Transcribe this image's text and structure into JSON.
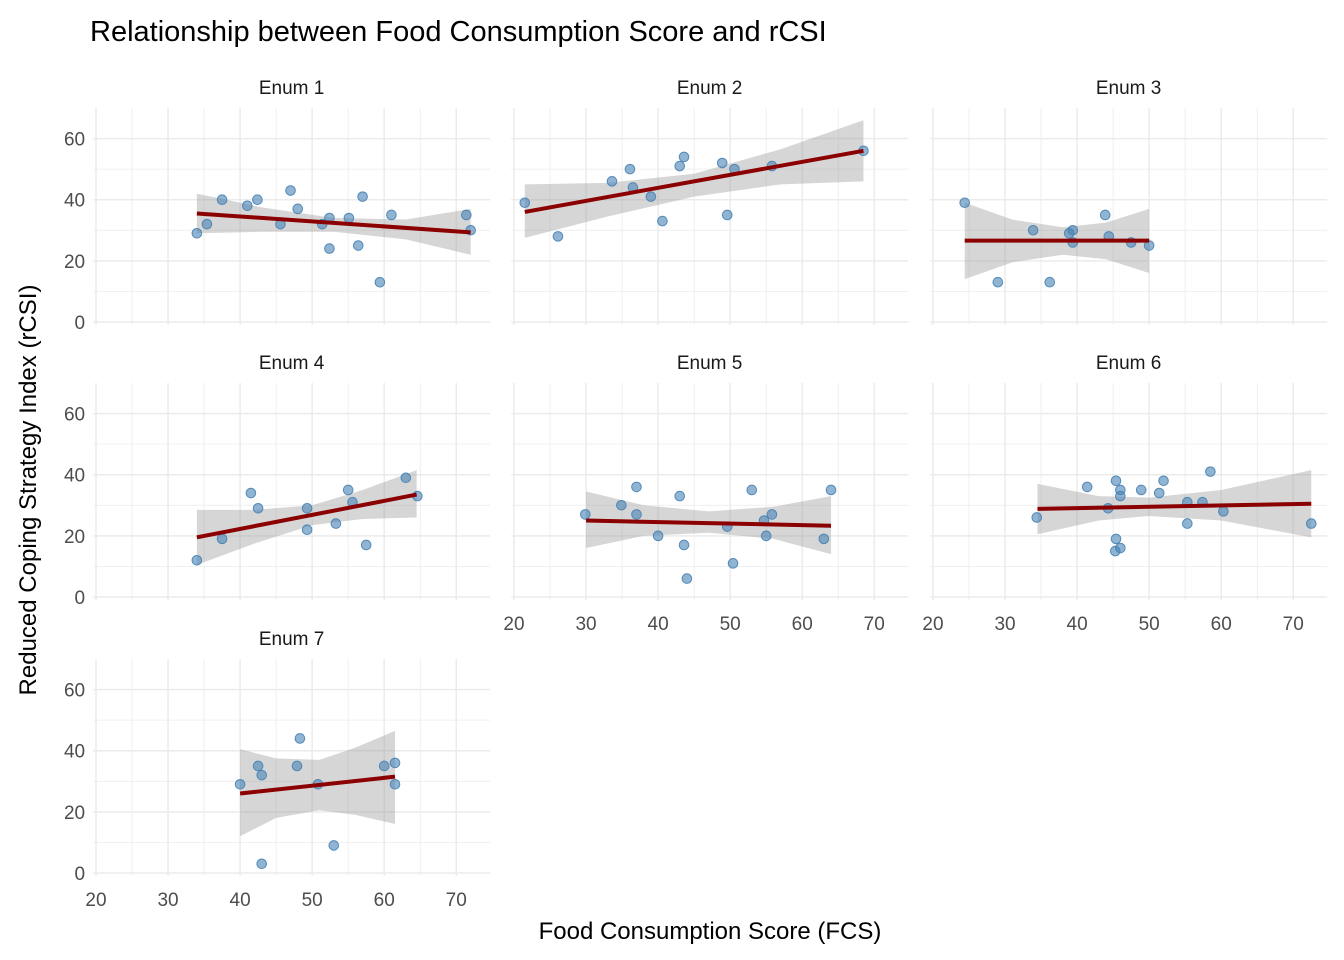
{
  "chart_data": {
    "type": "scatter",
    "title": "Relationship between Food Consumption Score and rCSI",
    "xlabel": "Food Consumption Score (FCS)",
    "ylabel": "Reduced Coping Strategy Index (rCSI)",
    "xlim": [
      19.6,
      74.7
    ],
    "ylim": [
      -1,
      70
    ],
    "x_ticks": [
      20,
      30,
      40,
      50,
      60,
      70
    ],
    "y_ticks": [
      0,
      20,
      40,
      60
    ],
    "grid": true,
    "point_color": "#4682b4",
    "fit_color": "#8b0000",
    "band_color": "#999999",
    "facets": [
      {
        "label": "Enum 1",
        "points": [
          [
            34,
            29
          ],
          [
            35.4,
            32
          ],
          [
            37.5,
            40
          ],
          [
            41,
            38
          ],
          [
            42.4,
            40
          ],
          [
            45.6,
            32
          ],
          [
            47,
            43
          ],
          [
            48,
            37
          ],
          [
            51.4,
            32
          ],
          [
            52.4,
            34
          ],
          [
            52.4,
            24
          ],
          [
            55.1,
            34
          ],
          [
            56.4,
            25
          ],
          [
            57,
            41
          ],
          [
            59.4,
            13
          ],
          [
            61,
            35
          ],
          [
            71.4,
            35
          ],
          [
            72,
            30
          ]
        ],
        "fit": {
          "x": [
            34,
            72
          ],
          "y": [
            35.5,
            29.3
          ]
        },
        "band": {
          "x": [
            34,
            43,
            53,
            63,
            72
          ],
          "lower": [
            29,
            29.5,
            29.5,
            27,
            22
          ],
          "upper": [
            42,
            37.5,
            34,
            33.5,
            37
          ]
        }
      },
      {
        "label": "Enum 2",
        "points": [
          [
            21.5,
            39
          ],
          [
            26.1,
            28
          ],
          [
            33.6,
            46
          ],
          [
            36.1,
            50
          ],
          [
            36.5,
            44
          ],
          [
            39,
            41
          ],
          [
            40.6,
            33
          ],
          [
            43,
            51
          ],
          [
            43.6,
            54
          ],
          [
            48.9,
            52
          ],
          [
            49.6,
            35
          ],
          [
            50.6,
            50
          ],
          [
            55.8,
            51
          ],
          [
            68.5,
            56
          ]
        ],
        "fit": {
          "x": [
            21.5,
            68.5
          ],
          "y": [
            36,
            56
          ]
        },
        "band": {
          "x": [
            21.5,
            33,
            45,
            57,
            68.5
          ],
          "lower": [
            27.5,
            34.5,
            41,
            45,
            46
          ],
          "upper": [
            45,
            45.5,
            48.5,
            56.5,
            66
          ]
        }
      },
      {
        "label": "Enum 3",
        "points": [
          [
            24.4,
            39
          ],
          [
            29,
            13
          ],
          [
            33.9,
            30
          ],
          [
            36.2,
            13
          ],
          [
            38.9,
            29
          ],
          [
            39.4,
            30
          ],
          [
            39.4,
            26
          ],
          [
            43.9,
            35
          ],
          [
            44.4,
            28
          ],
          [
            47.5,
            26
          ],
          [
            50,
            25
          ]
        ],
        "fit": {
          "x": [
            24.4,
            50
          ],
          "y": [
            26.6,
            26.6
          ]
        },
        "band": {
          "x": [
            24.4,
            31,
            38,
            44,
            50
          ],
          "lower": [
            14,
            19.5,
            22,
            20.5,
            16
          ],
          "upper": [
            39,
            33.5,
            31,
            32.5,
            37
          ]
        }
      },
      {
        "label": "Enum 4",
        "points": [
          [
            34,
            12
          ],
          [
            37.5,
            19
          ],
          [
            41.5,
            34
          ],
          [
            42.5,
            29
          ],
          [
            49.3,
            29
          ],
          [
            49.3,
            22
          ],
          [
            53.3,
            24
          ],
          [
            55,
            35
          ],
          [
            55.6,
            31
          ],
          [
            57.5,
            17
          ],
          [
            63,
            39
          ],
          [
            64.6,
            33
          ]
        ],
        "fit": {
          "x": [
            34,
            64.5
          ],
          "y": [
            19.5,
            33.5
          ]
        },
        "band": {
          "x": [
            34,
            42,
            50,
            57,
            64.5
          ],
          "lower": [
            10.5,
            17.5,
            23.5,
            25.5,
            26
          ],
          "upper": [
            28.5,
            28.5,
            30,
            35,
            41.5
          ]
        }
      },
      {
        "label": "Enum 5",
        "points": [
          [
            29.9,
            27
          ],
          [
            34.9,
            30
          ],
          [
            37,
            36
          ],
          [
            37,
            27
          ],
          [
            40,
            20
          ],
          [
            43,
            33
          ],
          [
            43.6,
            17
          ],
          [
            44,
            6
          ],
          [
            49.6,
            23
          ],
          [
            50.4,
            11
          ],
          [
            53,
            35
          ],
          [
            54.7,
            25
          ],
          [
            55,
            20
          ],
          [
            55.8,
            27
          ],
          [
            63,
            19
          ],
          [
            64,
            35
          ]
        ],
        "fit": {
          "x": [
            30,
            64
          ],
          "y": [
            25,
            23.3
          ]
        },
        "band": {
          "x": [
            30,
            38,
            47,
            56,
            64
          ],
          "lower": [
            16,
            20,
            21,
            19,
            14
          ],
          "upper": [
            34.5,
            30,
            28,
            29.5,
            33
          ]
        }
      },
      {
        "label": "Enum 6",
        "points": [
          [
            34.4,
            26
          ],
          [
            41.4,
            36
          ],
          [
            44.3,
            29
          ],
          [
            45.4,
            38
          ],
          [
            45.4,
            19
          ],
          [
            45.3,
            15
          ],
          [
            46,
            16
          ],
          [
            46,
            35
          ],
          [
            46,
            33
          ],
          [
            48.9,
            35
          ],
          [
            51.4,
            34
          ],
          [
            52,
            38
          ],
          [
            55.3,
            31
          ],
          [
            55.3,
            24
          ],
          [
            57.4,
            31
          ],
          [
            58.5,
            41
          ],
          [
            60.3,
            28
          ],
          [
            72.5,
            24
          ]
        ],
        "fit": {
          "x": [
            34.5,
            72.5
          ],
          "y": [
            28.8,
            30.5
          ]
        },
        "band": {
          "x": [
            34.5,
            43,
            50,
            60,
            72.5
          ],
          "lower": [
            20.5,
            25,
            26.5,
            25,
            19.5
          ],
          "upper": [
            37,
            33,
            32.5,
            35,
            41.5
          ]
        }
      },
      {
        "label": "Enum 7",
        "points": [
          [
            40,
            29
          ],
          [
            42.5,
            35
          ],
          [
            43,
            32
          ],
          [
            43,
            3
          ],
          [
            47.9,
            35
          ],
          [
            48.3,
            44
          ],
          [
            50.8,
            29
          ],
          [
            53,
            9
          ],
          [
            60,
            35
          ],
          [
            61.5,
            36
          ],
          [
            61.5,
            29
          ]
        ],
        "fit": {
          "x": [
            40,
            61.5
          ],
          "y": [
            26,
            31.5
          ]
        },
        "band": {
          "x": [
            40,
            45,
            51,
            56,
            61.5
          ],
          "lower": [
            12,
            18,
            20.5,
            19,
            16
          ],
          "upper": [
            40.5,
            37.5,
            37,
            41,
            46.5
          ]
        }
      }
    ]
  }
}
